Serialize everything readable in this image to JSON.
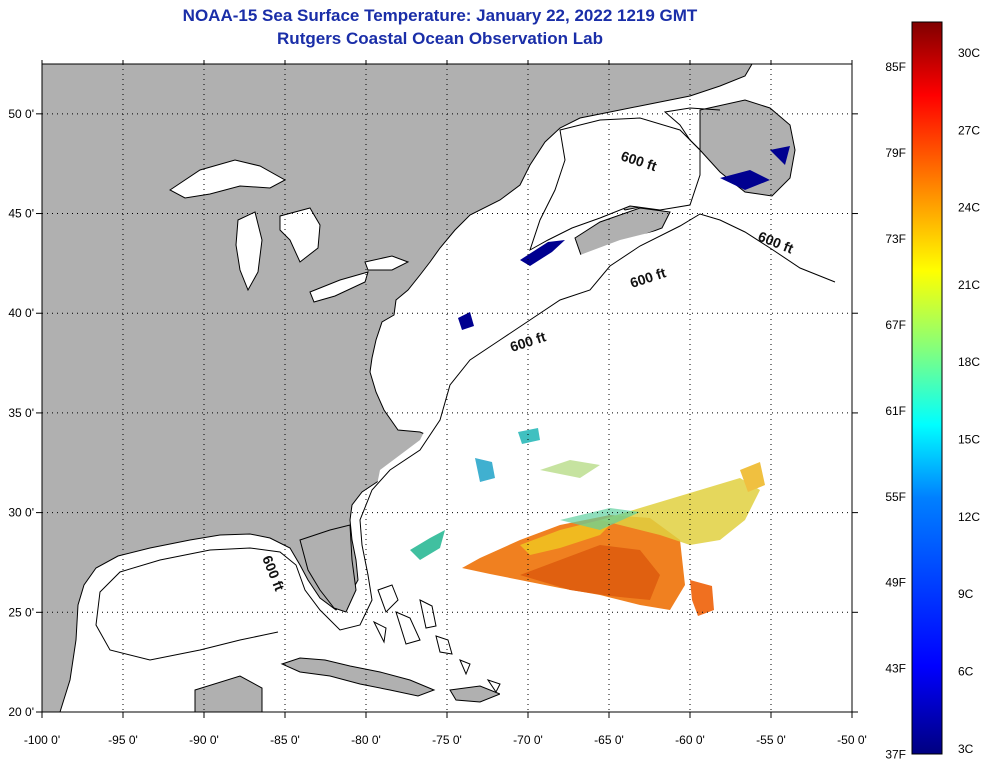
{
  "title": {
    "line1": "NOAA-15 Sea Surface Temperature:  January 22, 2022 1219 GMT",
    "line2": "Rutgers Coastal Ocean Observation Lab"
  },
  "map": {
    "lon_range": [
      -100,
      -50
    ],
    "lat_range": [
      20,
      52.5
    ],
    "lon_ticks": [
      "-100 0'",
      "-95 0'",
      "-90 0'",
      "-85 0'",
      "-80 0'",
      "-75 0'",
      "-70 0'",
      "-65 0'",
      "-60 0'",
      "-55 0'",
      "-50 0'"
    ],
    "lat_ticks": [
      "50 0'",
      "45 0'",
      "40 0'",
      "35 0'",
      "30 0'",
      "25 0'",
      "20 0'"
    ],
    "grid": "dotted",
    "land_color": "#b0b0b0",
    "contour_labels": [
      "600 ft",
      "600 ft",
      "600 ft",
      "600 ft",
      "600 ft"
    ]
  },
  "colorbar": {
    "f_labels": [
      "85F",
      "79F",
      "73F",
      "67F",
      "61F",
      "55F",
      "49F",
      "43F",
      "37F"
    ],
    "c_labels": [
      "30C",
      "27C",
      "24C",
      "21C",
      "18C",
      "15C",
      "12C",
      "9C",
      "6C",
      "3C"
    ],
    "colors": [
      "#800000",
      "#ff0000",
      "#ff8000",
      "#ffff00",
      "#80ff80",
      "#00ffff",
      "#0080ff",
      "#0000ff",
      "#000080"
    ]
  }
}
